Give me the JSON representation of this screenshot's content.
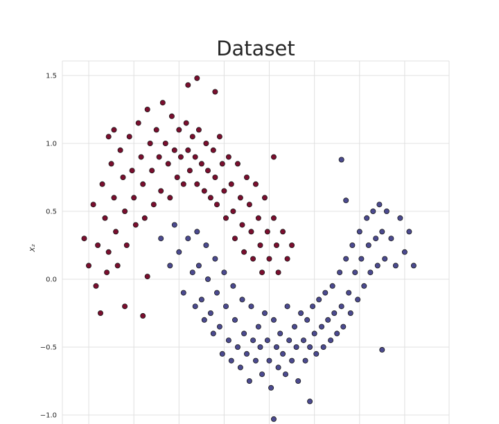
{
  "chart_data": {
    "type": "scatter",
    "title": "Dataset",
    "xlabel": "",
    "ylabel": "X₂",
    "ylim": [
      -1.0,
      1.6
    ],
    "yticks": [
      {
        "value": 1.5,
        "label": "1.5"
      },
      {
        "value": 1.0,
        "label": "1.0"
      },
      {
        "value": 0.5,
        "label": "0.5"
      },
      {
        "value": 0.0,
        "label": "0.0"
      },
      {
        "value": -0.5,
        "label": "−0.5"
      },
      {
        "value": -1.0,
        "label": "−1.0"
      }
    ],
    "xlim": [
      -1.2,
      2.9
    ],
    "xgrid": [
      -1.0,
      -0.5,
      0.0,
      0.5,
      1.0,
      1.5,
      2.0,
      2.5
    ],
    "grid": true,
    "colors": {
      "class_0": "#7a0e2e",
      "class_1": "#4b4a8f",
      "edge": "#1a1a1a",
      "grid": "#e0e0e0"
    },
    "series": [
      {
        "class": "class_0",
        "points": [
          [
            -1.05,
            0.3
          ],
          [
            -1.0,
            0.1
          ],
          [
            -0.95,
            0.55
          ],
          [
            -0.9,
            0.25
          ],
          [
            -0.85,
            0.7
          ],
          [
            -0.82,
            0.45
          ],
          [
            -0.8,
            0.05
          ],
          [
            -0.78,
            0.2
          ],
          [
            -0.75,
            0.85
          ],
          [
            -0.72,
            0.6
          ],
          [
            -0.7,
            0.35
          ],
          [
            -0.68,
            0.1
          ],
          [
            -0.65,
            0.95
          ],
          [
            -0.62,
            0.75
          ],
          [
            -0.6,
            0.5
          ],
          [
            -0.58,
            0.25
          ],
          [
            -0.55,
            1.05
          ],
          [
            -0.52,
            0.8
          ],
          [
            -0.5,
            0.6
          ],
          [
            -0.48,
            0.4
          ],
          [
            -0.45,
            1.15
          ],
          [
            -0.42,
            0.9
          ],
          [
            -0.4,
            0.7
          ],
          [
            -0.38,
            0.45
          ],
          [
            -0.35,
            1.25
          ],
          [
            -0.32,
            1.0
          ],
          [
            -0.3,
            0.8
          ],
          [
            -0.28,
            0.55
          ],
          [
            -0.25,
            1.1
          ],
          [
            -0.22,
            0.9
          ],
          [
            -0.2,
            0.65
          ],
          [
            -0.18,
            1.3
          ],
          [
            -0.15,
            1.0
          ],
          [
            -0.12,
            0.85
          ],
          [
            -0.1,
            0.6
          ],
          [
            -0.08,
            1.2
          ],
          [
            -0.05,
            0.95
          ],
          [
            -0.02,
            0.75
          ],
          [
            0.0,
            1.1
          ],
          [
            0.02,
            0.9
          ],
          [
            0.05,
            0.7
          ],
          [
            0.08,
            1.15
          ],
          [
            0.1,
            0.95
          ],
          [
            0.12,
            0.8
          ],
          [
            0.15,
            1.05
          ],
          [
            0.18,
            0.9
          ],
          [
            0.2,
            0.7
          ],
          [
            0.22,
            1.1
          ],
          [
            0.25,
            0.85
          ],
          [
            0.28,
            0.65
          ],
          [
            0.3,
            1.0
          ],
          [
            0.32,
            0.8
          ],
          [
            0.35,
            0.6
          ],
          [
            0.38,
            0.95
          ],
          [
            0.4,
            0.75
          ],
          [
            0.42,
            0.55
          ],
          [
            0.45,
            1.05
          ],
          [
            0.48,
            0.85
          ],
          [
            0.5,
            0.65
          ],
          [
            0.52,
            0.45
          ],
          [
            0.55,
            0.9
          ],
          [
            0.58,
            0.7
          ],
          [
            0.6,
            0.5
          ],
          [
            0.62,
            0.3
          ],
          [
            0.65,
            0.85
          ],
          [
            0.68,
            0.6
          ],
          [
            0.7,
            0.4
          ],
          [
            0.72,
            0.2
          ],
          [
            0.75,
            0.75
          ],
          [
            0.78,
            0.55
          ],
          [
            0.8,
            0.35
          ],
          [
            0.82,
            0.15
          ],
          [
            0.85,
            0.7
          ],
          [
            0.88,
            0.45
          ],
          [
            0.9,
            0.25
          ],
          [
            0.92,
            0.05
          ],
          [
            0.95,
            0.6
          ],
          [
            0.98,
            0.35
          ],
          [
            1.0,
            0.15
          ],
          [
            1.05,
            0.45
          ],
          [
            1.08,
            0.25
          ],
          [
            1.1,
            0.05
          ],
          [
            1.15,
            0.35
          ],
          [
            1.2,
            0.15
          ],
          [
            1.25,
            0.25
          ],
          [
            -0.92,
            -0.05
          ],
          [
            -0.87,
            -0.25
          ],
          [
            -0.6,
            -0.2
          ],
          [
            -0.4,
            -0.27
          ],
          [
            -0.35,
            0.02
          ],
          [
            0.2,
            1.48
          ],
          [
            0.1,
            1.43
          ],
          [
            0.4,
            1.38
          ],
          [
            -0.72,
            1.1
          ],
          [
            -0.78,
            1.05
          ],
          [
            1.05,
            0.9
          ]
        ]
      },
      {
        "class": "class_1",
        "points": [
          [
            -0.2,
            0.3
          ],
          [
            -0.1,
            0.1
          ],
          [
            -0.05,
            0.4
          ],
          [
            0.0,
            0.2
          ],
          [
            0.05,
            -0.1
          ],
          [
            0.1,
            0.3
          ],
          [
            0.15,
            0.05
          ],
          [
            0.18,
            -0.2
          ],
          [
            0.2,
            0.35
          ],
          [
            0.22,
            0.1
          ],
          [
            0.25,
            -0.15
          ],
          [
            0.28,
            -0.3
          ],
          [
            0.3,
            0.25
          ],
          [
            0.32,
            0.0
          ],
          [
            0.35,
            -0.25
          ],
          [
            0.38,
            -0.4
          ],
          [
            0.4,
            0.15
          ],
          [
            0.42,
            -0.1
          ],
          [
            0.45,
            -0.35
          ],
          [
            0.48,
            -0.55
          ],
          [
            0.5,
            0.05
          ],
          [
            0.52,
            -0.2
          ],
          [
            0.55,
            -0.45
          ],
          [
            0.58,
            -0.6
          ],
          [
            0.6,
            -0.05
          ],
          [
            0.62,
            -0.3
          ],
          [
            0.65,
            -0.5
          ],
          [
            0.68,
            -0.65
          ],
          [
            0.7,
            -0.15
          ],
          [
            0.72,
            -0.4
          ],
          [
            0.75,
            -0.55
          ],
          [
            0.78,
            -0.75
          ],
          [
            0.8,
            -0.2
          ],
          [
            0.82,
            -0.45
          ],
          [
            0.85,
            -0.6
          ],
          [
            0.88,
            -0.35
          ],
          [
            0.9,
            -0.5
          ],
          [
            0.92,
            -0.7
          ],
          [
            0.95,
            -0.25
          ],
          [
            0.98,
            -0.45
          ],
          [
            1.0,
            -0.6
          ],
          [
            1.02,
            -0.8
          ],
          [
            1.05,
            -0.3
          ],
          [
            1.08,
            -0.5
          ],
          [
            1.1,
            -0.65
          ],
          [
            1.12,
            -0.4
          ],
          [
            1.15,
            -0.55
          ],
          [
            1.18,
            -0.7
          ],
          [
            1.2,
            -0.2
          ],
          [
            1.22,
            -0.45
          ],
          [
            1.25,
            -0.6
          ],
          [
            1.28,
            -0.35
          ],
          [
            1.3,
            -0.5
          ],
          [
            1.32,
            -0.75
          ],
          [
            1.35,
            -0.25
          ],
          [
            1.38,
            -0.45
          ],
          [
            1.4,
            -0.6
          ],
          [
            1.42,
            -0.3
          ],
          [
            1.45,
            -0.5
          ],
          [
            1.48,
            -0.2
          ],
          [
            1.5,
            -0.4
          ],
          [
            1.52,
            -0.55
          ],
          [
            1.55,
            -0.15
          ],
          [
            1.58,
            -0.35
          ],
          [
            1.6,
            -0.5
          ],
          [
            1.62,
            -0.1
          ],
          [
            1.65,
            -0.3
          ],
          [
            1.68,
            -0.45
          ],
          [
            1.7,
            -0.05
          ],
          [
            1.72,
            -0.25
          ],
          [
            1.75,
            -0.4
          ],
          [
            1.78,
            0.05
          ],
          [
            1.8,
            -0.2
          ],
          [
            1.82,
            -0.35
          ],
          [
            1.85,
            0.15
          ],
          [
            1.88,
            -0.1
          ],
          [
            1.9,
            -0.25
          ],
          [
            1.92,
            0.25
          ],
          [
            1.95,
            0.05
          ],
          [
            1.98,
            -0.15
          ],
          [
            2.0,
            0.35
          ],
          [
            2.02,
            0.15
          ],
          [
            2.05,
            -0.05
          ],
          [
            2.08,
            0.45
          ],
          [
            2.1,
            0.25
          ],
          [
            2.12,
            0.05
          ],
          [
            2.15,
            0.5
          ],
          [
            2.18,
            0.3
          ],
          [
            2.2,
            0.1
          ],
          [
            2.22,
            0.55
          ],
          [
            2.25,
            0.35
          ],
          [
            2.28,
            0.15
          ],
          [
            2.3,
            0.5
          ],
          [
            2.35,
            0.3
          ],
          [
            2.4,
            0.1
          ],
          [
            2.45,
            0.45
          ],
          [
            2.5,
            0.2
          ],
          [
            2.55,
            0.35
          ],
          [
            2.6,
            0.1
          ],
          [
            1.05,
            -1.03
          ],
          [
            1.45,
            -0.9
          ],
          [
            1.8,
            0.88
          ],
          [
            1.85,
            0.58
          ],
          [
            2.25,
            -0.52
          ]
        ]
      }
    ]
  }
}
